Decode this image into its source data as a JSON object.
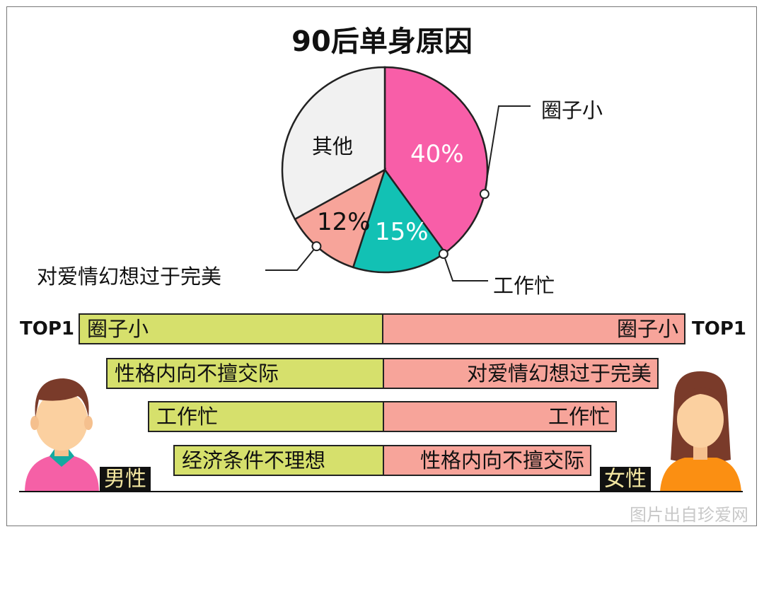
{
  "title": "90后单身原因",
  "chart_data": {
    "type": "pie",
    "title": "90后单身原因",
    "slices": [
      {
        "label": "圈子小",
        "value": 40,
        "value_label": "40%",
        "color": "#f85ea8"
      },
      {
        "label": "工作忙",
        "value": 15,
        "value_label": "15%",
        "color": "#12c1b4"
      },
      {
        "label": "对爱情幻想过于完美",
        "value": 12,
        "value_label": "12%",
        "color": "#f7a49a"
      },
      {
        "label": "其他",
        "value": 33,
        "value_label": "",
        "color": "#f1f1f1"
      }
    ],
    "start": "top",
    "direction": "clockwise"
  },
  "ranking": {
    "top_label": "TOP1",
    "male_label": "男性",
    "female_label": "女性",
    "male_color": "#d6e06c",
    "female_color": "#f7a49a",
    "rows": [
      {
        "male": "圈子小",
        "female": "圈子小"
      },
      {
        "male": "性格内向不擅交际",
        "female": "对爱情幻想过于完美"
      },
      {
        "male": "工作忙",
        "female": "工作忙"
      },
      {
        "male": "经济条件不理想",
        "female": "性格内向不擅交际"
      }
    ]
  },
  "watermark": "图片出自珍爱网"
}
